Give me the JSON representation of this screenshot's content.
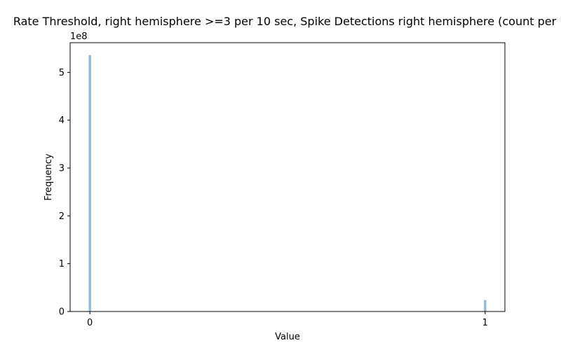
{
  "chart_data": {
    "type": "bar",
    "title": "Rate Threshold, right hemisphere >=3 per 10 sec, Spike Detections right hemisphere (count per",
    "xlabel": "Value",
    "ylabel": "Frequency",
    "y_offset_label": "1e8",
    "y_scale": 100000000,
    "xlim": [
      -0.05,
      1.05
    ],
    "ylim": [
      0,
      562000000
    ],
    "x_ticks": [
      0,
      1
    ],
    "x_tick_labels": [
      "0",
      "1"
    ],
    "y_ticks": [
      0,
      100000000,
      200000000,
      300000000,
      400000000,
      500000000
    ],
    "y_tick_labels": [
      "0",
      "1",
      "2",
      "3",
      "4",
      "5"
    ],
    "bar_width": 0.006,
    "bar_color": "#1f77b4",
    "bar_alpha": 0.5,
    "grid": false,
    "bars": [
      {
        "x": 0,
        "value": 536000000
      },
      {
        "x": 1,
        "value": 24000000
      }
    ]
  }
}
